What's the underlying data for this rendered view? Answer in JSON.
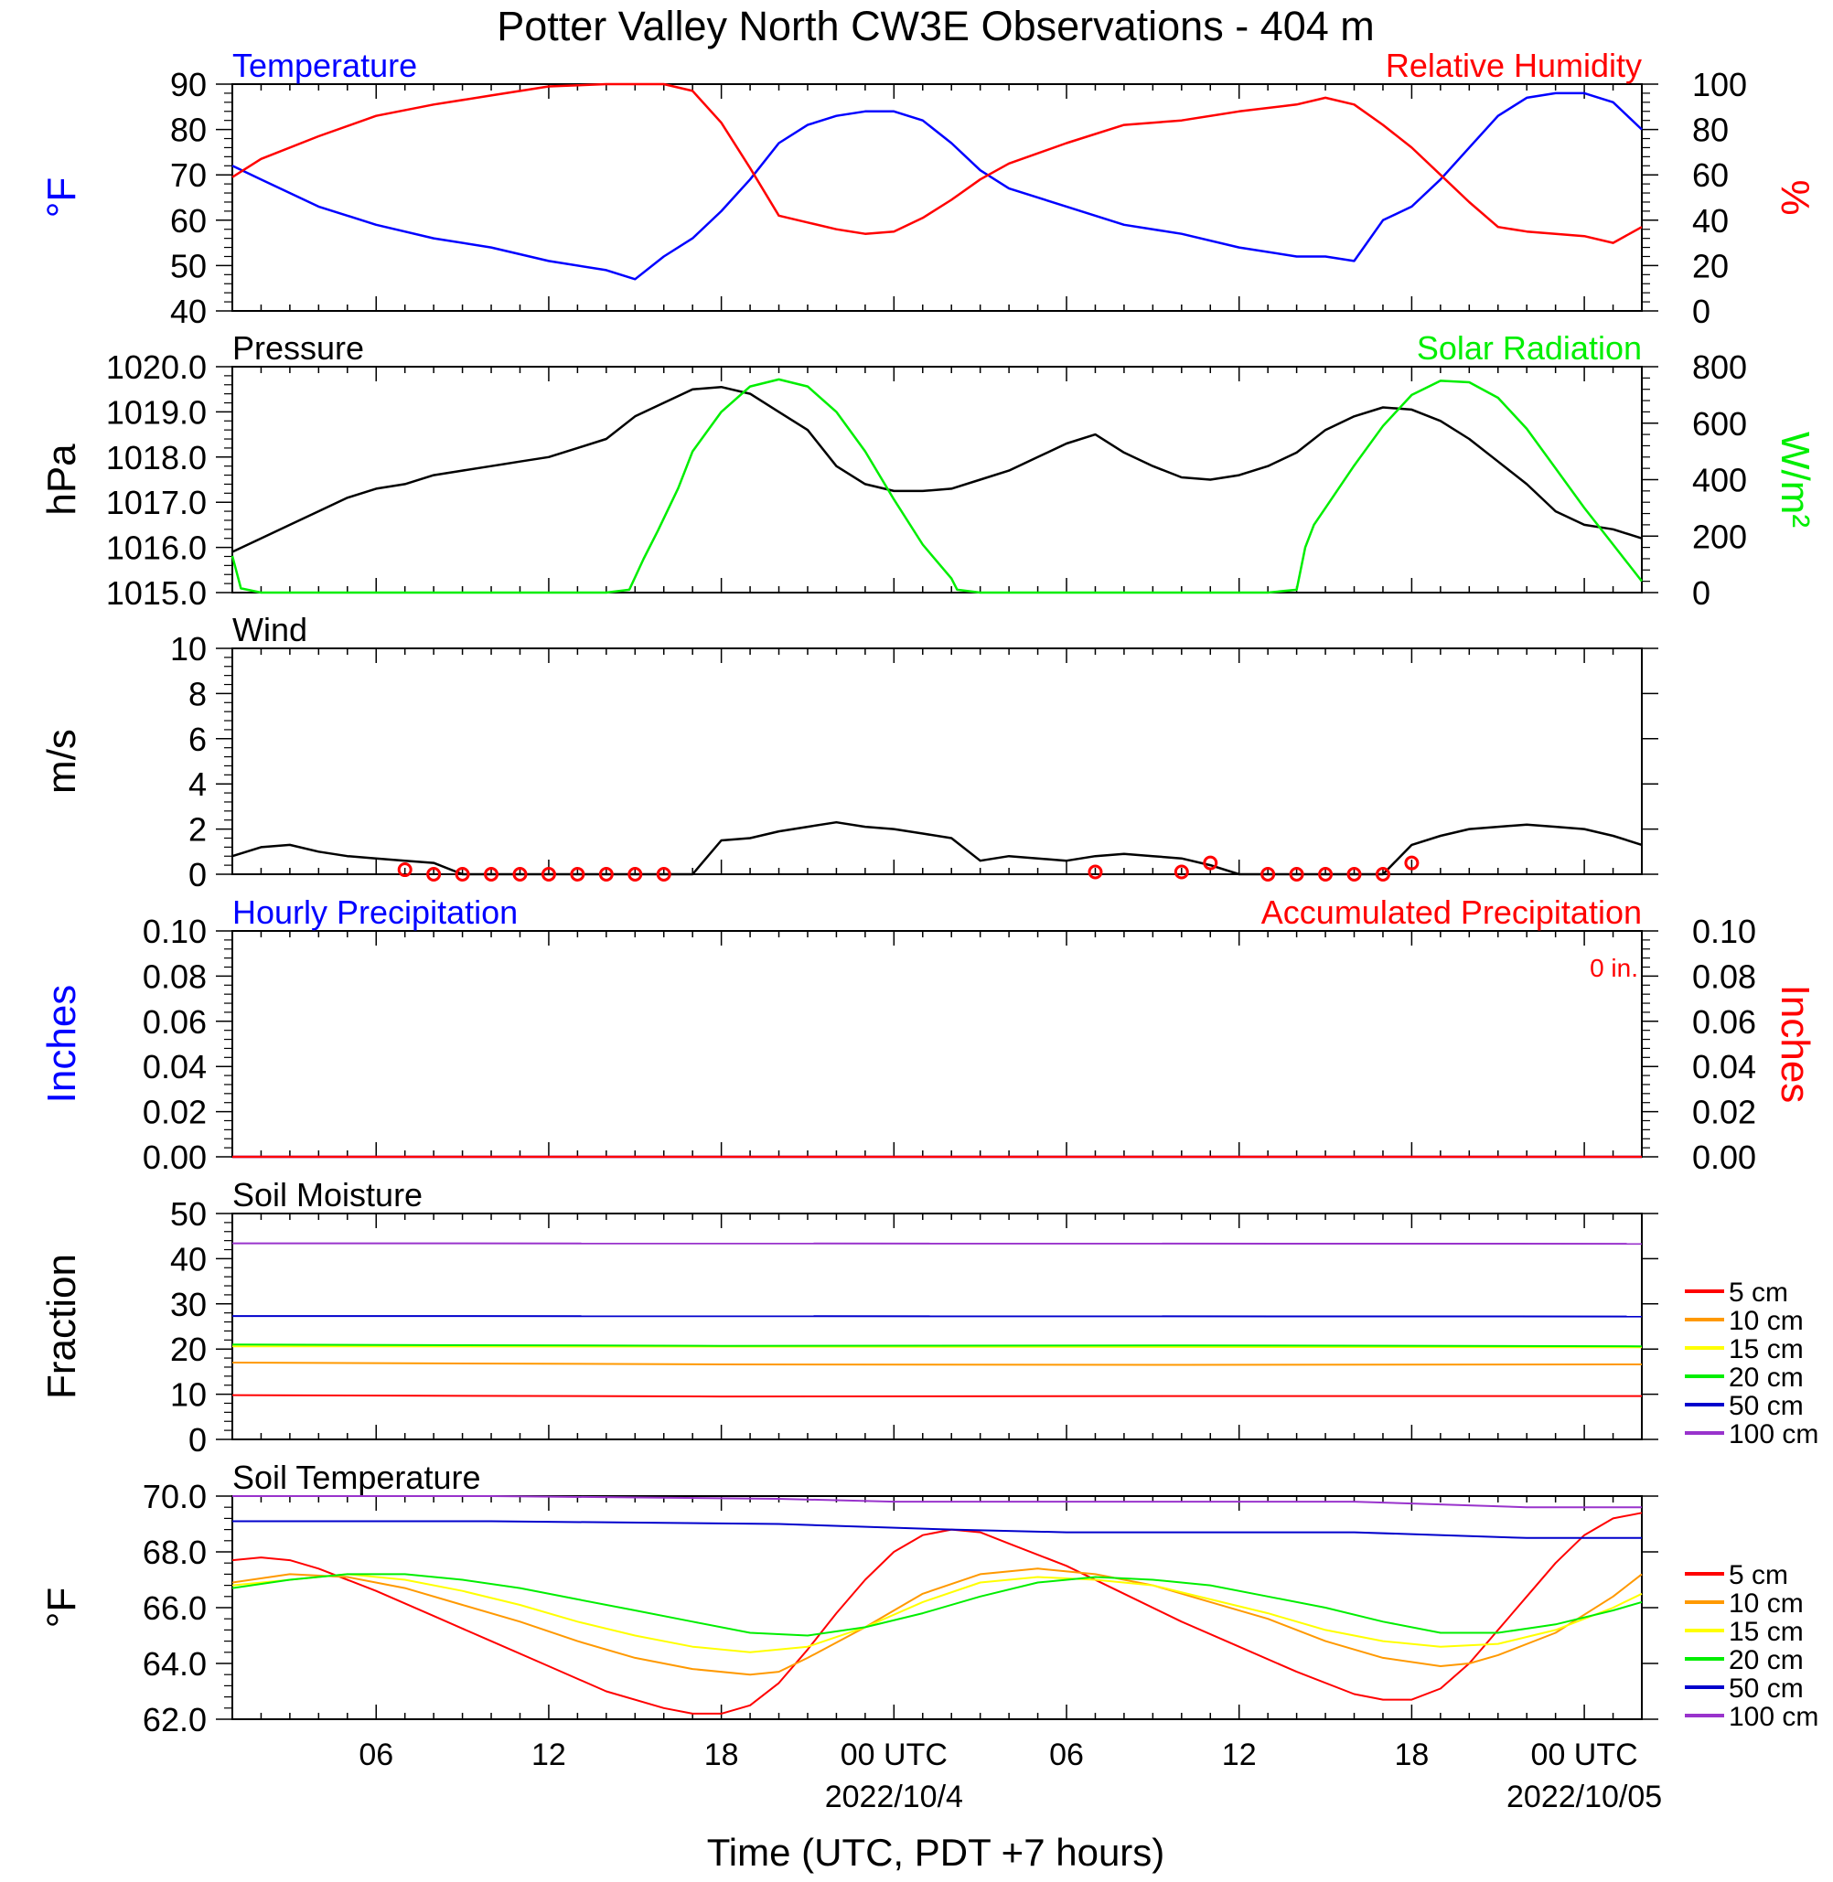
{
  "title": "Potter Valley North CW3E Observations - 404 m",
  "x_axis": {
    "label": "Time (UTC, PDT +7 hours)",
    "tick_labels": [
      "06",
      "12",
      "18",
      "00 UTC",
      "06",
      "12",
      "18",
      "00 UTC"
    ],
    "tick_hours": [
      6,
      12,
      18,
      24,
      30,
      36,
      42,
      48
    ],
    "date_labels": [
      "2022/10/4",
      "2022/10/05"
    ],
    "range_hours": [
      1,
      50
    ]
  },
  "colors": {
    "temperature": "#0000ff",
    "rh": "#ff0000",
    "pressure": "#000000",
    "solar": "#00ee00",
    "wind": "#000000",
    "wind_barb": "#ff0000",
    "hourly_precip": "#0000ff",
    "accum_precip": "#ff0000",
    "5cm": "#ff0000",
    "10cm": "#ff9900",
    "15cm": "#ffff00",
    "20cm": "#00ee00",
    "50cm": "#0000cc",
    "100cm": "#9933cc"
  },
  "chart_data": [
    {
      "type": "line",
      "panel": "temperature_rh",
      "left_title": "Temperature",
      "right_title": "Relative Humidity",
      "ylabel_left": "°F",
      "ylabel_right": "%",
      "ylim_left": [
        40,
        90
      ],
      "ylim_right": [
        0,
        100
      ],
      "yticks_left": [
        "40",
        "50",
        "60",
        "70",
        "80",
        "90"
      ],
      "yticks_right": [
        "0",
        "20",
        "40",
        "60",
        "80",
        "100"
      ],
      "series": [
        {
          "name": "Temperature",
          "axis": "left",
          "x": [
            1,
            2,
            4,
            6,
            8,
            10,
            12,
            14,
            15,
            16,
            17,
            18,
            19,
            20,
            21,
            22,
            23,
            24,
            25,
            26,
            27,
            28,
            30,
            32,
            34,
            36,
            38,
            39,
            40,
            41,
            42,
            43,
            44,
            45,
            46,
            47,
            48,
            49,
            50
          ],
          "y": [
            72,
            69,
            63,
            59,
            56,
            54,
            51,
            49,
            47,
            52,
            56,
            62,
            69,
            77,
            81,
            83,
            84,
            84,
            82,
            77,
            71,
            67,
            63,
            59,
            57,
            54,
            52,
            52,
            51,
            60,
            63,
            69,
            76,
            83,
            87,
            88,
            88,
            86,
            80
          ]
        },
        {
          "name": "Relative Humidity",
          "axis": "right",
          "x": [
            1,
            2,
            4,
            6,
            8,
            10,
            12,
            14,
            15,
            16,
            17,
            18,
            19,
            20,
            21,
            22,
            23,
            24,
            25,
            26,
            27,
            28,
            30,
            32,
            34,
            36,
            38,
            39,
            40,
            41,
            42,
            43,
            44,
            45,
            46,
            47,
            48,
            49,
            50
          ],
          "y": [
            59,
            67,
            77,
            86,
            91,
            95,
            99,
            100,
            100,
            100,
            97,
            83,
            63,
            42,
            39,
            36,
            34,
            35,
            41,
            49,
            58,
            65,
            74,
            82,
            84,
            88,
            91,
            94,
            91,
            82,
            72,
            60,
            48,
            37,
            35,
            34,
            33,
            30,
            37
          ]
        }
      ]
    },
    {
      "type": "line",
      "panel": "pressure_solar",
      "left_title": "Pressure",
      "right_title": "Solar Radiation",
      "ylabel_left": "hPa",
      "ylabel_right": "W/m²",
      "ylim_left": [
        1015.0,
        1020.0
      ],
      "ylim_right": [
        0,
        800
      ],
      "yticks_left": [
        "1015.0",
        "1016.0",
        "1017.0",
        "1018.0",
        "1019.0",
        "1020.0"
      ],
      "yticks_right": [
        "0",
        "200",
        "400",
        "600",
        "800"
      ],
      "series": [
        {
          "name": "Pressure",
          "axis": "left",
          "x": [
            1,
            2,
            3,
            4,
            5,
            6,
            7,
            8,
            9,
            10,
            11,
            12,
            13,
            14,
            15,
            16,
            17,
            18,
            19,
            20,
            21,
            22,
            23,
            24,
            25,
            26,
            27,
            28,
            29,
            30,
            31,
            32,
            33,
            34,
            35,
            36,
            37,
            38,
            39,
            40,
            41,
            42,
            43,
            44,
            45,
            46,
            47,
            48,
            49,
            50
          ],
          "y": [
            1015.9,
            1016.2,
            1016.5,
            1016.8,
            1017.1,
            1017.3,
            1017.4,
            1017.6,
            1017.7,
            1017.8,
            1017.9,
            1018.0,
            1018.2,
            1018.4,
            1018.9,
            1019.2,
            1019.5,
            1019.55,
            1019.4,
            1019.0,
            1018.6,
            1017.8,
            1017.4,
            1017.25,
            1017.25,
            1017.3,
            1017.5,
            1017.7,
            1018.0,
            1018.3,
            1018.5,
            1018.1,
            1017.8,
            1017.55,
            1017.5,
            1017.6,
            1017.8,
            1018.1,
            1018.6,
            1018.9,
            1019.1,
            1019.05,
            1018.8,
            1018.4,
            1017.9,
            1017.4,
            1016.8,
            1016.5,
            1016.4,
            1016.2
          ]
        },
        {
          "name": "Solar Radiation",
          "axis": "right",
          "x": [
            1,
            1.3,
            2,
            5,
            10,
            14,
            14.8,
            15.3,
            15.8,
            16.5,
            17,
            18,
            19,
            20,
            21,
            22,
            23,
            24,
            25,
            26,
            26.2,
            27,
            35,
            37,
            38,
            38.3,
            38.6,
            39,
            40,
            41,
            42,
            43,
            44,
            45,
            46,
            47,
            48,
            49,
            50
          ],
          "y": [
            130,
            15,
            0,
            0,
            0,
            0,
            10,
            120,
            220,
            370,
            500,
            640,
            730,
            755,
            730,
            640,
            500,
            330,
            170,
            50,
            10,
            0,
            0,
            0,
            10,
            160,
            240,
            300,
            450,
            590,
            700,
            750,
            745,
            690,
            580,
            440,
            300,
            170,
            40
          ]
        }
      ]
    },
    {
      "type": "line",
      "panel": "wind",
      "left_title": "Wind",
      "ylabel_left": "m/s",
      "ylim_left": [
        0,
        10
      ],
      "yticks_left": [
        "0",
        "2",
        "4",
        "6",
        "8",
        "10"
      ],
      "series": [
        {
          "name": "Wind",
          "axis": "left",
          "x": [
            1,
            2,
            3,
            4,
            5,
            6,
            7,
            8,
            9,
            10,
            11,
            12,
            13,
            14,
            15,
            16,
            17,
            18,
            19,
            20,
            21,
            22,
            23,
            24,
            25,
            26,
            27,
            28,
            29,
            30,
            31,
            32,
            33,
            34,
            35,
            36,
            37,
            38,
            39,
            40,
            41,
            42,
            43,
            44,
            45,
            46,
            47,
            48,
            49,
            50
          ],
          "y": [
            0.8,
            1.2,
            1.3,
            1.0,
            0.8,
            0.7,
            0.6,
            0.5,
            0.0,
            0.0,
            0.0,
            0.0,
            0.0,
            0.0,
            0.0,
            0.0,
            0.0,
            1.5,
            1.6,
            1.9,
            2.1,
            2.3,
            2.1,
            2.0,
            1.8,
            1.6,
            0.6,
            0.8,
            0.7,
            0.6,
            0.8,
            0.9,
            0.8,
            0.7,
            0.4,
            0.0,
            0.0,
            0.0,
            0.0,
            0.0,
            0.0,
            1.3,
            1.7,
            2.0,
            2.1,
            2.2,
            2.1,
            2.0,
            1.7,
            1.3
          ]
        }
      ],
      "calm_markers_x": [
        7,
        8,
        9,
        10,
        11,
        12,
        13,
        14,
        15,
        16,
        31,
        34,
        35,
        37,
        38,
        39,
        40,
        41,
        42
      ],
      "calm_markers_y": [
        0.2,
        0,
        0,
        0,
        0,
        0,
        0,
        0,
        0,
        0,
        0.1,
        0.1,
        0.5,
        0,
        0,
        0,
        0,
        0,
        0.5
      ]
    },
    {
      "type": "line",
      "panel": "precipitation",
      "left_title": "Hourly Precipitation",
      "right_title": "Accumulated Precipitation",
      "annotation": "0 in.",
      "ylabel_left": "Inches",
      "ylabel_right": "Inches",
      "ylim_left": [
        0,
        0.1
      ],
      "ylim_right": [
        0,
        0.1
      ],
      "yticks_left": [
        "0.00",
        "0.02",
        "0.04",
        "0.06",
        "0.08",
        "0.10"
      ],
      "yticks_right": [
        "0.00",
        "0.02",
        "0.04",
        "0.06",
        "0.08",
        "0.10"
      ],
      "series": [
        {
          "name": "Hourly Precipitation",
          "axis": "left",
          "x": [
            1,
            50
          ],
          "y": [
            0,
            0
          ]
        },
        {
          "name": "Accumulated Precipitation",
          "axis": "right",
          "x": [
            1,
            50
          ],
          "y": [
            0,
            0
          ]
        }
      ]
    },
    {
      "type": "line",
      "panel": "soil_moisture",
      "left_title": "Soil Moisture",
      "ylabel_left": "Fraction",
      "ylim_left": [
        0,
        50
      ],
      "yticks_left": [
        "0",
        "10",
        "20",
        "30",
        "40",
        "50"
      ],
      "legend": "right",
      "series": [
        {
          "name": "5 cm",
          "key": "5cm",
          "x": [
            1,
            18,
            34,
            50
          ],
          "y": [
            9.8,
            9.5,
            9.6,
            9.6
          ]
        },
        {
          "name": "10 cm",
          "key": "10cm",
          "x": [
            1,
            18,
            34,
            50
          ],
          "y": [
            17.0,
            16.6,
            16.5,
            16.6
          ]
        },
        {
          "name": "15 cm",
          "key": "15cm",
          "x": [
            1,
            50
          ],
          "y": [
            20.6,
            20.4
          ]
        },
        {
          "name": "20 cm",
          "key": "20cm",
          "x": [
            1,
            18,
            34,
            50
          ],
          "y": [
            21.0,
            20.7,
            20.8,
            20.6
          ]
        },
        {
          "name": "50 cm",
          "key": "50cm",
          "x": [
            1,
            50
          ],
          "y": [
            27.3,
            27.2
          ]
        },
        {
          "name": "100 cm",
          "key": "100cm",
          "x": [
            1,
            50
          ],
          "y": [
            43.4,
            43.3
          ]
        }
      ]
    },
    {
      "type": "line",
      "panel": "soil_temperature",
      "left_title": "Soil Temperature",
      "ylabel_left": "°F",
      "ylim_left": [
        62.0,
        70.0
      ],
      "yticks_left": [
        "62.0",
        "64.0",
        "66.0",
        "68.0",
        "70.0"
      ],
      "legend": "right",
      "series": [
        {
          "name": "5 cm",
          "key": "5cm",
          "x": [
            1,
            2,
            3,
            4,
            6,
            8,
            10,
            12,
            14,
            16,
            17,
            18,
            19,
            20,
            21,
            22,
            23,
            24,
            25,
            26,
            27,
            28,
            30,
            32,
            34,
            36,
            38,
            40,
            41,
            42,
            43,
            44,
            45,
            46,
            47,
            48,
            49,
            50
          ],
          "y": [
            67.7,
            67.8,
            67.7,
            67.4,
            66.6,
            65.7,
            64.8,
            63.9,
            63.0,
            62.4,
            62.2,
            62.2,
            62.5,
            63.3,
            64.5,
            65.8,
            67.0,
            68.0,
            68.6,
            68.8,
            68.7,
            68.3,
            67.5,
            66.5,
            65.5,
            64.6,
            63.7,
            62.9,
            62.7,
            62.7,
            63.1,
            64.0,
            65.2,
            66.4,
            67.6,
            68.6,
            69.2,
            69.4
          ]
        },
        {
          "name": "10 cm",
          "key": "10cm",
          "x": [
            1,
            3,
            5,
            7,
            9,
            11,
            13,
            15,
            17,
            19,
            20,
            21,
            23,
            25,
            27,
            29,
            31,
            33,
            35,
            37,
            39,
            41,
            43,
            44,
            45,
            47,
            49,
            50
          ],
          "y": [
            66.9,
            67.2,
            67.1,
            66.7,
            66.1,
            65.5,
            64.8,
            64.2,
            63.8,
            63.6,
            63.7,
            64.2,
            65.3,
            66.5,
            67.2,
            67.4,
            67.2,
            66.8,
            66.2,
            65.6,
            64.8,
            64.2,
            63.9,
            64.0,
            64.3,
            65.1,
            66.4,
            67.2
          ]
        },
        {
          "name": "15 cm",
          "key": "15cm",
          "x": [
            1,
            3,
            5,
            7,
            9,
            11,
            13,
            15,
            17,
            19,
            21,
            23,
            25,
            27,
            29,
            31,
            33,
            35,
            37,
            39,
            41,
            43,
            45,
            47,
            49,
            50
          ],
          "y": [
            66.8,
            67.0,
            67.2,
            67.0,
            66.6,
            66.1,
            65.5,
            65.0,
            64.6,
            64.4,
            64.6,
            65.3,
            66.2,
            66.9,
            67.1,
            67.0,
            66.8,
            66.3,
            65.8,
            65.2,
            64.8,
            64.6,
            64.7,
            65.2,
            66.0,
            66.5
          ]
        },
        {
          "name": "20 cm",
          "key": "20cm",
          "x": [
            1,
            3,
            5,
            7,
            9,
            11,
            13,
            15,
            17,
            19,
            21,
            23,
            25,
            27,
            29,
            31,
            33,
            35,
            37,
            39,
            41,
            43,
            45,
            47,
            49,
            50
          ],
          "y": [
            66.7,
            67.0,
            67.2,
            67.2,
            67.0,
            66.7,
            66.3,
            65.9,
            65.5,
            65.1,
            65.0,
            65.3,
            65.8,
            66.4,
            66.9,
            67.1,
            67.0,
            66.8,
            66.4,
            66.0,
            65.5,
            65.1,
            65.1,
            65.4,
            65.9,
            66.2
          ]
        },
        {
          "name": "50 cm",
          "key": "50cm",
          "x": [
            1,
            10,
            20,
            26,
            30,
            40,
            46,
            50
          ],
          "y": [
            69.1,
            69.1,
            69.0,
            68.8,
            68.7,
            68.7,
            68.5,
            68.5
          ]
        },
        {
          "name": "100 cm",
          "key": "100cm",
          "x": [
            1,
            10,
            20,
            24,
            30,
            40,
            46,
            50
          ],
          "y": [
            70.0,
            70.0,
            69.9,
            69.8,
            69.8,
            69.8,
            69.6,
            69.6
          ]
        }
      ]
    }
  ]
}
